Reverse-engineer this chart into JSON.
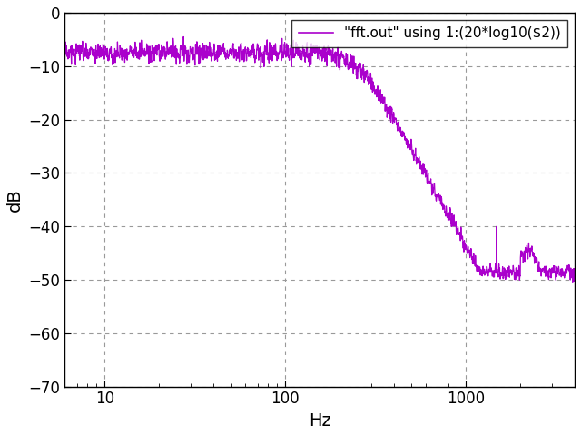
{
  "xlabel": "Hz",
  "ylabel": "dB",
  "legend_label": "\"fft.out\" using 1:(20*log10($2))",
  "line_color": "#aa00cc",
  "background_color": "#ffffff",
  "xlim_low": 6,
  "xlim_high": 4000,
  "ylim": [
    -70,
    0
  ],
  "yticks": [
    0,
    -10,
    -20,
    -30,
    -40,
    -50,
    -60,
    -70
  ],
  "grid_color": "#999999",
  "figsize": [
    6.4,
    4.8
  ],
  "dpi": 100,
  "passband_db": -7.5,
  "fc": 250,
  "order": 3,
  "noise_seed": 17,
  "stopband_db": -48.5
}
